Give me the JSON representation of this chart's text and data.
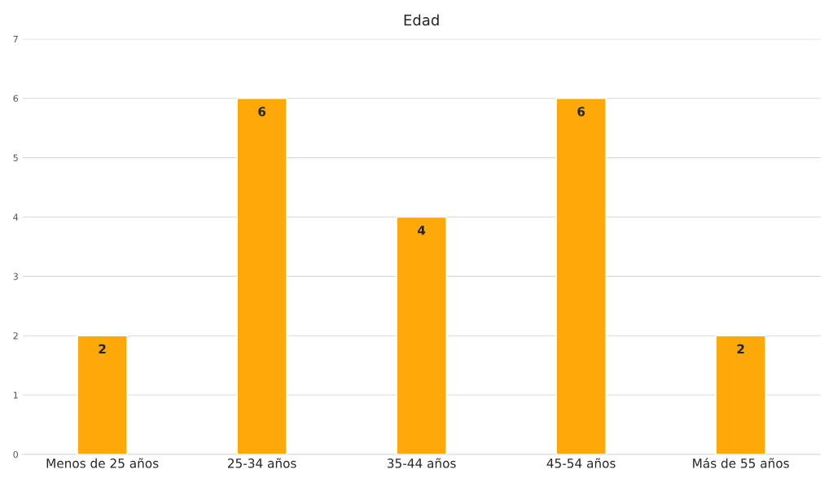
{
  "chart_data": {
    "type": "bar",
    "title": "Edad",
    "categories": [
      "Menos de 25 años",
      "25-34 años",
      "35-44 años",
      "45-54 años",
      "Más de 55 años"
    ],
    "values": [
      2,
      6,
      4,
      6,
      2
    ],
    "color": "#ffa908",
    "ylim": [
      0,
      7
    ],
    "yticks": [
      0,
      1,
      2,
      3,
      4,
      5,
      6,
      7
    ],
    "grid": "y",
    "data_labels": true,
    "legend": false
  }
}
